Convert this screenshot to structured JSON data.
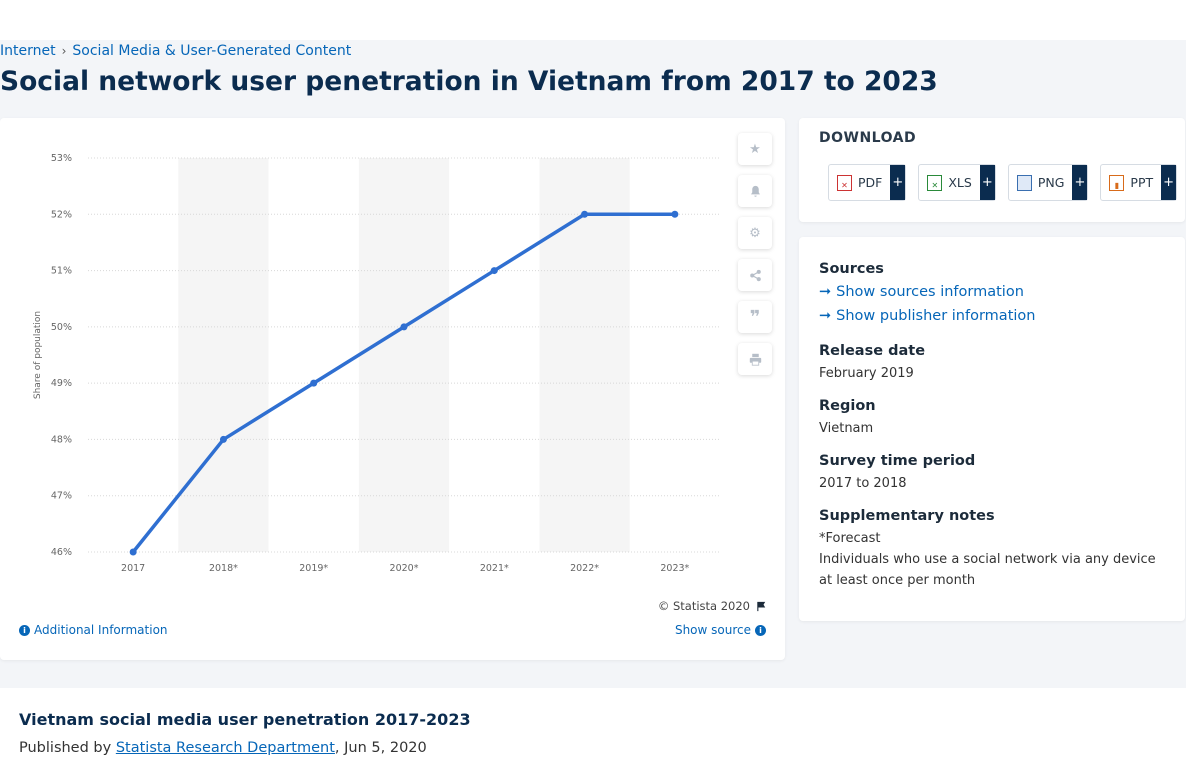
{
  "breadcrumb": {
    "items": [
      "Internet",
      "Social Media & User-Generated Content"
    ],
    "separator": "›"
  },
  "page_title": "Social network user penetration in Vietnam from 2017 to 2023",
  "chart": {
    "copyright": "© Statista 2020",
    "additional_info": "Additional Information",
    "show_source": "Show source"
  },
  "chart_data": {
    "type": "line",
    "categories": [
      "2017",
      "2018*",
      "2019*",
      "2020*",
      "2021*",
      "2022*",
      "2023*"
    ],
    "series": [
      {
        "values": [
          46,
          48,
          49,
          50,
          51,
          52,
          52
        ]
      }
    ],
    "ylabel": "Share of population",
    "y_ticks": [
      "46%",
      "47%",
      "48%",
      "49%",
      "50%",
      "51%",
      "52%",
      "53%"
    ],
    "ylim": [
      46,
      53
    ],
    "grid": true,
    "color": "#2f6fd1"
  },
  "tools": [
    "star-icon",
    "bell-icon",
    "gear-icon",
    "share-icon",
    "quote-icon",
    "print-icon"
  ],
  "download": {
    "title": "DOWNLOAD",
    "buttons": [
      {
        "label": "PDF",
        "icon": "pdf-icon"
      },
      {
        "label": "XLS",
        "icon": "xls-icon"
      },
      {
        "label": "PNG",
        "icon": "png-icon"
      },
      {
        "label": "PPT",
        "icon": "ppt-icon"
      }
    ],
    "plus": "+"
  },
  "info": {
    "sources_h": "Sources",
    "show_sources": "Show sources information",
    "show_publisher": "Show publisher information",
    "release_h": "Release date",
    "release_v": "February 2019",
    "region_h": "Region",
    "region_v": "Vietnam",
    "survey_h": "Survey time period",
    "survey_v": "2017 to 2018",
    "notes_h": "Supplementary notes",
    "notes_1": "*Forecast",
    "notes_2": "Individuals who use a social network via any device at least once per month"
  },
  "bottom": {
    "title": "Vietnam social media user penetration 2017-2023",
    "published_by": "Published by",
    "publisher": "Statista Research Department",
    "date": ", Jun 5, 2020"
  }
}
